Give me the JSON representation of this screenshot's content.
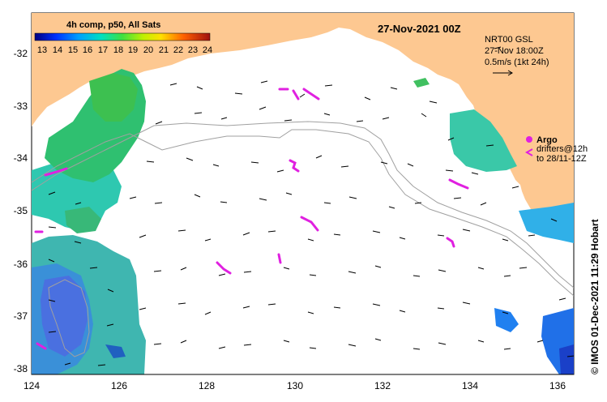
{
  "map": {
    "date_title": "27-Nov-2021 00Z",
    "legend_title": "4h comp, p50, All Sats",
    "colorbar_ticks": [
      "13",
      "14",
      "15",
      "16",
      "17",
      "18",
      "19",
      "20",
      "21",
      "22",
      "23",
      "24"
    ],
    "gsl_label": "NRT00 GSL",
    "gsl_time": "27-Nov 18:00Z",
    "scale_label": "0.5m/s (1kt 24h)",
    "argo_label": "Argo",
    "drifters_label": "drifters@12h",
    "drifters_to": "to 28/11-12Z",
    "credit": "© IMOS 01-Dec-2021 11:29 Hobart",
    "x_ticks": [
      "124",
      "126",
      "128",
      "130",
      "132",
      "134",
      "136"
    ],
    "y_ticks": [
      "-32",
      "-33",
      "-34",
      "-35",
      "-36",
      "-37",
      "-38"
    ],
    "colors": {
      "land": "#fdc891",
      "ocean": "#ffffff",
      "argo": "#e020e0",
      "drifter": "#e020e0",
      "isobath": "#a0a0a0"
    }
  }
}
